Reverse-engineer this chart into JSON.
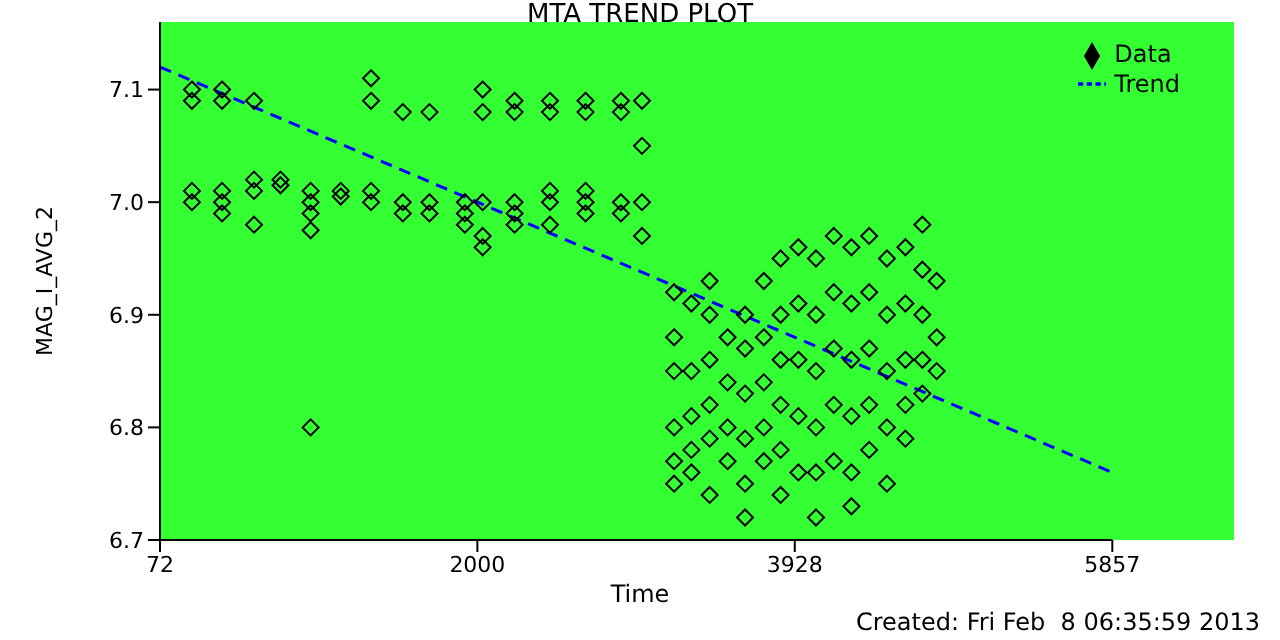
{
  "chart_data": {
    "type": "scatter",
    "title": "MTA TREND PLOT",
    "xlabel": "Time",
    "ylabel": "MAG_I_AVG_2",
    "annotations": [
      "Created: Fri Feb  8 06:35:59 2013"
    ],
    "xlim": [
      72,
      5857
    ],
    "xticks": [
      72,
      2000,
      3928,
      5857
    ],
    "ylim": [
      6.7,
      7.16
    ],
    "yticks": [
      6.7,
      6.8,
      6.9,
      {
        "value": 7,
        "label": "7.0"
      },
      7.1
    ],
    "legend": "top right",
    "marker": "diamond",
    "series": [
      {
        "name": "Data",
        "color": "#000000",
        "x": [
          266,
          266,
          266,
          266,
          449,
          449,
          449,
          449,
          449,
          643,
          643,
          643,
          643,
          804,
          804,
          987,
          987,
          987,
          987,
          987,
          1170,
          1170,
          1354,
          1354,
          1354,
          1354,
          1547,
          1547,
          1547,
          1709,
          1709,
          1709,
          1924,
          1924,
          1924,
          2032,
          2032,
          2032,
          2032,
          2032,
          2226,
          2226,
          2226,
          2226,
          2226,
          2441,
          2441,
          2441,
          2441,
          2441,
          2657,
          2657,
          2657,
          2657,
          2657,
          2872,
          2872,
          2872,
          2872,
          3000,
          3000,
          3000,
          3000,
          3195,
          3195,
          3195,
          3195,
          3195,
          3195,
          3300,
          3300,
          3300,
          3300,
          3300,
          3411,
          3411,
          3411,
          3411,
          3411,
          3411,
          3520,
          3520,
          3520,
          3520,
          3626,
          3626,
          3626,
          3626,
          3626,
          3626,
          3740,
          3740,
          3740,
          3740,
          3740,
          3842,
          3842,
          3842,
          3842,
          3842,
          3842,
          3950,
          3950,
          3950,
          3950,
          3950,
          4057,
          4057,
          4057,
          4057,
          4057,
          4057,
          4165,
          4165,
          4165,
          4165,
          4165,
          4272,
          4272,
          4272,
          4272,
          4272,
          4272,
          4380,
          4380,
          4380,
          4380,
          4380,
          4488,
          4488,
          4488,
          4488,
          4488,
          4600,
          4600,
          4600,
          4600,
          4600,
          4703,
          4703,
          4703,
          4703,
          4703,
          4790,
          4790,
          4790
        ],
        "values": [
          7.1,
          7.01,
          7.0,
          7.09,
          7.1,
          7.09,
          7.01,
          7.0,
          6.99,
          7.09,
          7.02,
          7.01,
          6.98,
          7.015,
          7.02,
          7.01,
          7.0,
          6.99,
          6.975,
          6.8,
          7.005,
          7.01,
          7.11,
          7.09,
          7.01,
          7.0,
          7.0,
          6.99,
          7.08,
          7.0,
          6.99,
          7.08,
          7.0,
          6.99,
          6.98,
          7.1,
          7.08,
          7.0,
          6.97,
          6.96,
          7.09,
          7.08,
          7.0,
          6.99,
          6.98,
          7.09,
          7.08,
          7.01,
          7.0,
          6.98,
          7.09,
          7.08,
          7.01,
          7.0,
          6.99,
          7.09,
          7.08,
          7.0,
          6.99,
          7.09,
          7.05,
          7.0,
          6.97,
          6.92,
          6.88,
          6.85,
          6.8,
          6.77,
          6.75,
          6.91,
          6.85,
          6.81,
          6.78,
          6.76,
          6.93,
          6.9,
          6.86,
          6.82,
          6.79,
          6.74,
          6.88,
          6.84,
          6.8,
          6.77,
          6.9,
          6.87,
          6.83,
          6.79,
          6.75,
          6.72,
          6.93,
          6.88,
          6.84,
          6.8,
          6.77,
          6.95,
          6.9,
          6.86,
          6.82,
          6.78,
          6.74,
          6.96,
          6.91,
          6.86,
          6.81,
          6.76,
          6.95,
          6.9,
          6.85,
          6.8,
          6.76,
          6.72,
          6.97,
          6.92,
          6.87,
          6.82,
          6.77,
          6.96,
          6.91,
          6.86,
          6.81,
          6.76,
          6.73,
          6.97,
          6.92,
          6.87,
          6.82,
          6.78,
          6.95,
          6.9,
          6.85,
          6.8,
          6.75,
          6.96,
          6.91,
          6.86,
          6.82,
          6.79,
          6.98,
          6.94,
          6.9,
          6.86,
          6.83,
          6.93,
          6.88,
          6.85
        ]
      },
      {
        "name": "Trend",
        "type": "line",
        "color": "#0000ff",
        "marker": "none",
        "line_style": "dashed",
        "x": [
          72,
          5857
        ],
        "values": [
          7.12,
          6.76
        ]
      }
    ]
  }
}
